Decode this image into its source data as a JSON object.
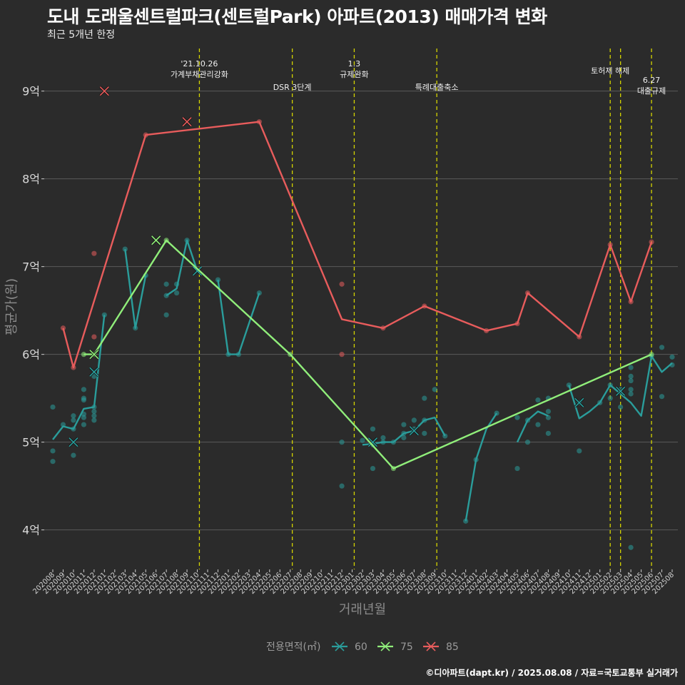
{
  "title": "도내 도래울센트럴파크(센트럴Park) 아파트(2013) 매매가격 변화",
  "subtitle": "최근 5개년 한정",
  "caption": "©디아파트(dapt.kr) / 2025.08.08 / 자료=국토교통부 실거래가",
  "colors": {
    "background": "#2b2b2b",
    "grid": "#5a5a5a",
    "event_line": "#d4d400",
    "series_60": "#2a9d9b",
    "series_75": "#90ee7a",
    "series_85": "#e85c5c"
  },
  "chart_data": {
    "type": "line",
    "xlabel": "거래년월",
    "ylabel": "평균가(원)",
    "ylim": [
      3.55,
      9.55
    ],
    "yticks": [
      {
        "value": 4,
        "label": "4억"
      },
      {
        "value": 5,
        "label": "5억"
      },
      {
        "value": 6,
        "label": "6억"
      },
      {
        "value": 7,
        "label": "7억"
      },
      {
        "value": 8,
        "label": "8억"
      },
      {
        "value": 9,
        "label": "9억"
      }
    ],
    "x_categories": [
      "202008",
      "202009",
      "202010",
      "202011",
      "202012",
      "202101",
      "202102",
      "202103",
      "202104",
      "202105",
      "202106",
      "202107",
      "202108",
      "202109",
      "202110",
      "202111",
      "202112",
      "202201",
      "202202",
      "202203",
      "202204",
      "202205",
      "202206",
      "202207",
      "202208",
      "202209",
      "202210",
      "202211",
      "202212",
      "202301",
      "202302",
      "202303",
      "202304",
      "202305",
      "202306",
      "202307",
      "202308",
      "202309",
      "202310",
      "202311",
      "202312",
      "202401",
      "202402",
      "202403",
      "202404",
      "202405",
      "202406",
      "202407",
      "202408",
      "202409",
      "202410",
      "202411",
      "202412",
      "202501",
      "202502",
      "202503",
      "202504",
      "202505",
      "202506",
      "202507",
      "202508"
    ],
    "events": [
      {
        "x": 14.2,
        "label_lines": [
          "'21.10.26",
          "가계부채관리강화"
        ],
        "label_row": 0
      },
      {
        "x": 23.2,
        "label_lines": [
          "DSR 3단계"
        ],
        "label_row": 2
      },
      {
        "x": 29.2,
        "label_lines": [
          "1.3",
          "규제완화"
        ],
        "label_row": 0
      },
      {
        "x": 37.2,
        "label_lines": [
          "특례대출축소"
        ],
        "label_row": 2
      },
      {
        "x": 54.0,
        "label_lines": [
          "토허제 해제"
        ],
        "label_row": 1
      },
      {
        "x": 55.0,
        "label_lines": [],
        "label_row": 0
      },
      {
        "x": 58.0,
        "label_lines": [
          "6.27",
          "대출규제"
        ],
        "label_row": 1.5
      }
    ],
    "legend_title": "전용면적(㎡)",
    "legend_position": "bottom",
    "series": [
      {
        "name": "60",
        "color_key": "series_60",
        "line": [
          [
            0,
            5.03
          ],
          [
            1,
            5.18
          ],
          [
            2,
            5.15
          ],
          [
            3,
            5.38
          ],
          [
            4,
            5.4
          ],
          [
            5,
            6.45
          ],
          [
            null,
            null
          ],
          [
            7,
            7.2
          ],
          [
            8,
            6.3
          ],
          [
            9,
            6.9
          ],
          [
            null,
            null
          ],
          [
            11,
            6.67
          ],
          [
            12,
            6.75
          ],
          [
            13,
            7.3
          ],
          [
            14,
            6.95
          ],
          [
            null,
            null
          ],
          [
            16,
            6.85
          ],
          [
            17,
            6.0
          ],
          [
            18,
            6.0
          ],
          [
            20,
            6.7
          ],
          [
            null,
            null
          ],
          [
            30,
            4.97
          ],
          [
            31,
            4.98
          ],
          [
            32,
            5.0
          ],
          [
            33,
            5.0
          ],
          [
            34,
            5.1
          ],
          [
            35,
            5.13
          ],
          [
            36,
            5.25
          ],
          [
            37,
            5.28
          ],
          [
            38,
            5.07
          ],
          [
            null,
            null
          ],
          [
            40,
            4.1
          ],
          [
            41,
            4.8
          ],
          [
            42,
            5.15
          ],
          [
            43,
            5.33
          ],
          [
            null,
            null
          ],
          [
            45,
            5.0
          ],
          [
            46,
            5.25
          ],
          [
            47,
            5.35
          ],
          [
            48,
            5.3
          ],
          [
            null,
            null
          ],
          [
            50,
            5.65
          ],
          [
            51,
            5.27
          ],
          [
            52,
            5.35
          ],
          [
            53,
            5.45
          ],
          [
            54,
            5.65
          ],
          [
            55,
            5.55
          ],
          [
            56,
            5.45
          ],
          [
            57,
            5.3
          ],
          [
            58,
            5.98
          ],
          [
            59,
            5.8
          ],
          [
            60,
            5.9
          ]
        ],
        "points": [
          [
            0,
            5.4
          ],
          [
            0,
            4.9
          ],
          [
            0,
            4.78
          ],
          [
            1,
            5.2
          ],
          [
            2,
            5.3
          ],
          [
            2,
            5.25
          ],
          [
            2,
            5.15
          ],
          [
            2,
            4.85
          ],
          [
            3,
            5.6
          ],
          [
            3,
            5.5
          ],
          [
            3,
            5.48
          ],
          [
            3,
            5.32
          ],
          [
            3,
            5.28
          ],
          [
            3,
            5.2
          ],
          [
            4,
            5.75
          ],
          [
            4,
            5.4
          ],
          [
            4,
            5.35
          ],
          [
            4,
            5.3
          ],
          [
            4,
            5.25
          ],
          [
            5,
            6.45
          ],
          [
            7,
            7.2
          ],
          [
            8,
            6.3
          ],
          [
            9,
            6.9
          ],
          [
            11,
            6.8
          ],
          [
            11,
            6.67
          ],
          [
            11,
            6.45
          ],
          [
            12,
            6.8
          ],
          [
            12,
            6.7
          ],
          [
            13,
            7.3
          ],
          [
            16,
            6.85
          ],
          [
            17,
            6.0
          ],
          [
            18,
            6.0
          ],
          [
            20,
            6.7
          ],
          [
            28,
            5.0
          ],
          [
            28,
            4.5
          ],
          [
            30,
            5.02
          ],
          [
            31,
            5.15
          ],
          [
            31,
            4.97
          ],
          [
            31,
            4.7
          ],
          [
            32,
            5.05
          ],
          [
            32,
            5.0
          ],
          [
            33,
            5.0
          ],
          [
            34,
            5.1
          ],
          [
            34,
            5.2
          ],
          [
            34,
            5.05
          ],
          [
            35,
            5.25
          ],
          [
            35,
            5.15
          ],
          [
            36,
            5.5
          ],
          [
            36,
            5.25
          ],
          [
            36,
            5.1
          ],
          [
            37,
            5.6
          ],
          [
            38,
            5.07
          ],
          [
            40,
            4.1
          ],
          [
            41,
            4.8
          ],
          [
            43,
            5.33
          ],
          [
            45,
            5.28
          ],
          [
            45,
            4.7
          ],
          [
            46,
            5.25
          ],
          [
            46,
            5.0
          ],
          [
            47,
            5.48
          ],
          [
            47,
            5.2
          ],
          [
            48,
            5.5
          ],
          [
            48,
            5.35
          ],
          [
            48,
            5.28
          ],
          [
            48,
            5.1
          ],
          [
            50,
            5.65
          ],
          [
            51,
            5.45
          ],
          [
            51,
            4.9
          ],
          [
            53,
            5.45
          ],
          [
            54,
            5.65
          ],
          [
            54,
            5.5
          ],
          [
            55,
            5.6
          ],
          [
            55,
            5.4
          ],
          [
            56,
            5.85
          ],
          [
            56,
            5.75
          ],
          [
            56,
            5.7
          ],
          [
            56,
            5.6
          ],
          [
            56,
            5.55
          ],
          [
            56,
            3.8
          ],
          [
            58,
            5.98
          ],
          [
            59,
            6.08
          ],
          [
            59,
            5.52
          ],
          [
            60,
            5.97
          ],
          [
            60,
            5.88
          ]
        ],
        "markers": [
          [
            2,
            5.0
          ],
          [
            4,
            5.8
          ],
          [
            14,
            6.95
          ],
          [
            31,
            5.0
          ],
          [
            35,
            5.13
          ],
          [
            51,
            5.45
          ],
          [
            55,
            5.58
          ]
        ]
      },
      {
        "name": "75",
        "color_key": "series_75",
        "line": [
          [
            3,
            6.0
          ],
          [
            4,
            6.0
          ],
          [
            11,
            7.3
          ],
          [
            23,
            6.0
          ],
          [
            33,
            4.7
          ],
          [
            58,
            6.0
          ]
        ],
        "points": [
          [
            3,
            6.0
          ],
          [
            4,
            6.0
          ],
          [
            11,
            7.3
          ],
          [
            23,
            6.0
          ],
          [
            33,
            4.7
          ],
          [
            58,
            6.0
          ]
        ],
        "markers": [
          [
            4,
            6.0
          ],
          [
            10,
            7.3
          ]
        ]
      },
      {
        "name": "85",
        "color_key": "series_85",
        "line": [
          [
            1,
            6.3
          ],
          [
            2,
            5.85
          ],
          [
            9,
            8.5
          ],
          [
            20,
            8.65
          ],
          [
            28,
            6.4
          ],
          [
            32,
            6.3
          ],
          [
            36,
            6.55
          ],
          [
            42,
            6.27
          ],
          [
            45,
            6.35
          ],
          [
            46,
            6.7
          ],
          [
            51,
            6.2
          ],
          [
            54,
            7.25
          ],
          [
            56,
            6.6
          ],
          [
            58,
            7.28
          ]
        ],
        "points": [
          [
            1,
            6.3
          ],
          [
            2,
            5.85
          ],
          [
            4,
            7.15
          ],
          [
            4,
            6.2
          ],
          [
            9,
            8.5
          ],
          [
            20,
            8.65
          ],
          [
            28,
            6.8
          ],
          [
            28,
            6.0
          ],
          [
            32,
            6.3
          ],
          [
            36,
            6.55
          ],
          [
            42,
            6.27
          ],
          [
            45,
            6.35
          ],
          [
            46,
            6.7
          ],
          [
            51,
            6.2
          ],
          [
            54,
            7.25
          ],
          [
            56,
            6.6
          ],
          [
            58,
            7.28
          ]
        ],
        "markers": [
          [
            5,
            9.0
          ],
          [
            13,
            8.65
          ]
        ]
      }
    ]
  }
}
